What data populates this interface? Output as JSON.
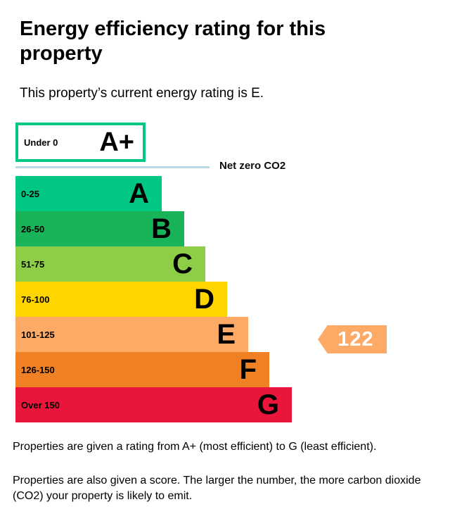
{
  "page": {
    "title": "Energy efficiency rating for this property",
    "subtitle": "This property’s current energy rating is E.",
    "footer": {
      "p1": "Properties are given a rating from A+ (most efficient) to G (least efficient).",
      "p2": "Properties are also given a score. The larger the number, the more carbon dioxide (CO2) your property is likely to emit."
    }
  },
  "chart_data": {
    "type": "bar",
    "orientation": "horizontal",
    "title": "Energy efficiency rating for this property",
    "current_rating_text": "This property’s current energy rating is E.",
    "net_zero": {
      "label": "Net zero CO2",
      "line_color": "#b9dbe8"
    },
    "bands": [
      {
        "letter": "A+",
        "range": "Under 0",
        "color": "#00c781",
        "style": "outline"
      },
      {
        "letter": "A",
        "range": "0-25",
        "color": "#00c781",
        "style": "fill"
      },
      {
        "letter": "B",
        "range": "26-50",
        "color": "#19b459",
        "style": "fill"
      },
      {
        "letter": "C",
        "range": "51-75",
        "color": "#8dce46",
        "style": "fill"
      },
      {
        "letter": "D",
        "range": "76-100",
        "color": "#ffd500",
        "style": "fill"
      },
      {
        "letter": "E",
        "range": "101-125",
        "color": "#fcaa65",
        "style": "fill"
      },
      {
        "letter": "F",
        "range": "126-150",
        "color": "#ef8023",
        "style": "fill"
      },
      {
        "letter": "G",
        "range": "Over 150",
        "color": "#e9153b",
        "style": "fill"
      }
    ],
    "current_score": {
      "value": 122,
      "band": "E",
      "color": "#fcaa65",
      "text_color": "#ffffff"
    }
  }
}
